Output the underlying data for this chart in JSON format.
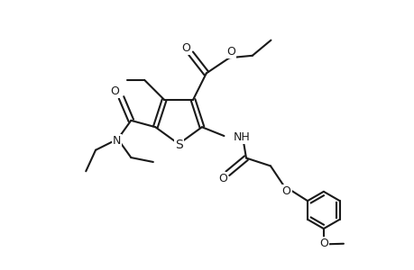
{
  "bg_color": "#ffffff",
  "line_color": "#1a1a1a",
  "line_width": 1.5,
  "figsize": [
    4.6,
    3.0
  ],
  "dpi": 100,
  "font_size": 9,
  "atom_labels": {
    "S": "S",
    "NH": "NH",
    "N": "N",
    "O": "O"
  }
}
